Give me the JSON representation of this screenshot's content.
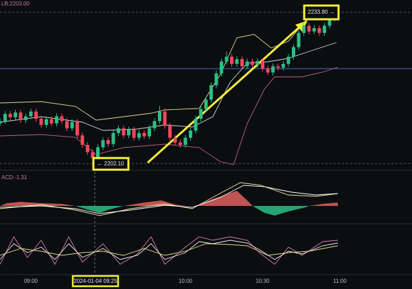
{
  "chart_data": {
    "type": "candlestick",
    "indicator_label": "LB:2203.00",
    "macd_label": "ACD:-1.31",
    "crosshair_label": "2024-01-04 09:25",
    "high_annotation": {
      "value": 2233.8,
      "label": "2233.80 →"
    },
    "low_annotation": {
      "value": 2202.1,
      "label": "← 2202.10"
    },
    "price_line": 2222.0,
    "price_line_color": "#4a6fb5",
    "up_color": "#2ebd85",
    "down_color": "#f6465d",
    "ylim": [
      2200.4,
      2236.4
    ],
    "xticks": [
      "09:00",
      "10:00",
      "10:30",
      "11:00"
    ],
    "x": [
      "08:48",
      "08:50",
      "08:52",
      "08:54",
      "08:56",
      "08:58",
      "09:00",
      "09:02",
      "09:04",
      "09:06",
      "09:08",
      "09:10",
      "09:12",
      "09:14",
      "09:16",
      "09:18",
      "09:20",
      "09:22",
      "09:24",
      "09:26",
      "09:28",
      "09:30",
      "09:32",
      "09:34",
      "09:36",
      "09:38",
      "09:40",
      "09:42",
      "09:44",
      "09:46",
      "09:48",
      "09:50",
      "09:52",
      "09:54",
      "09:56",
      "09:58",
      "10:00",
      "10:02",
      "10:04",
      "10:06",
      "10:08",
      "10:10",
      "10:12",
      "10:14",
      "10:16",
      "10:18",
      "10:20",
      "10:22",
      "10:24",
      "10:26",
      "10:28",
      "10:30",
      "10:32",
      "10:34",
      "10:36",
      "10:38",
      "10:40",
      "10:42",
      "10:44",
      "10:46",
      "10:48",
      "10:50",
      "10:52",
      "10:54",
      "10:56",
      "10:58"
    ],
    "open": [
      2210.5,
      2211.0,
      2212.5,
      2211.8,
      2212.8,
      2211.2,
      2212.0,
      2213.0,
      2211.5,
      2210.2,
      2211.4,
      2210.5,
      2212.0,
      2211.0,
      2209.5,
      2210.8,
      2208.0,
      2206.0,
      2204.5,
      2203.2,
      2205.5,
      2207.0,
      2206.2,
      2208.5,
      2209.5,
      2208.0,
      2209.2,
      2207.5,
      2208.5,
      2207.8,
      2209.5,
      2211.0,
      2213.0,
      2210.0,
      2207.5,
      2206.5,
      2206.0,
      2207.5,
      2209.0,
      2211.5,
      2213.5,
      2215.5,
      2218.5,
      2221.0,
      2223.5,
      2224.5,
      2223.0,
      2224.0,
      2222.5,
      2223.5,
      2222.8,
      2223.6,
      2222.0,
      2221.2,
      2222.5,
      2222.2,
      2223.0,
      2224.5,
      2226.5,
      2229.5,
      2231.0,
      2229.8,
      2230.5,
      2229.5,
      2231.0,
      2232.5
    ],
    "high": [
      2211.6,
      2213.1,
      2213.1,
      2213.4,
      2213.4,
      2212.6,
      2213.6,
      2213.6,
      2212.1,
      2212.0,
      2212.0,
      2212.6,
      2212.6,
      2211.6,
      2211.4,
      2211.4,
      2208.6,
      2206.6,
      2205.1,
      2206.1,
      2207.6,
      2207.6,
      2209.1,
      2210.1,
      2210.1,
      2209.8,
      2209.8,
      2209.1,
      2209.1,
      2210.1,
      2211.6,
      2214.2,
      2213.6,
      2210.6,
      2208.1,
      2207.1,
      2208.1,
      2209.6,
      2212.1,
      2214.1,
      2216.1,
      2219.1,
      2221.6,
      2224.1,
      2225.6,
      2225.1,
      2224.6,
      2224.6,
      2224.1,
      2224.1,
      2224.2,
      2224.2,
      2222.6,
      2223.1,
      2223.1,
      2223.6,
      2225.1,
      2227.1,
      2230.1,
      2231.6,
      2231.6,
      2231.1,
      2231.1,
      2231.6,
      2233.1,
      2233.8
    ],
    "low": [
      2209.9,
      2210.4,
      2211.2,
      2211.2,
      2210.6,
      2210.6,
      2211.4,
      2210.9,
      2209.6,
      2209.6,
      2209.9,
      2209.9,
      2210.4,
      2208.9,
      2208.9,
      2207.4,
      2205.4,
      2203.9,
      2202.1,
      2202.6,
      2204.9,
      2205.6,
      2205.6,
      2207.9,
      2207.4,
      2207.4,
      2206.9,
      2206.9,
      2207.2,
      2207.2,
      2208.9,
      2210.4,
      2209.4,
      2206.9,
      2205.9,
      2205.4,
      2205.4,
      2206.9,
      2208.4,
      2210.9,
      2212.9,
      2214.9,
      2217.9,
      2220.4,
      2222.9,
      2222.4,
      2222.4,
      2221.9,
      2221.9,
      2222.2,
      2222.2,
      2221.4,
      2220.6,
      2220.6,
      2221.6,
      2221.6,
      2222.4,
      2223.9,
      2225.9,
      2228.9,
      2229.2,
      2229.2,
      2228.9,
      2228.9,
      2230.4,
      2231.9
    ],
    "close": [
      2211.0,
      2212.5,
      2211.8,
      2212.8,
      2211.2,
      2212.0,
      2213.0,
      2211.5,
      2210.2,
      2211.4,
      2210.5,
      2212.0,
      2211.0,
      2209.5,
      2210.8,
      2208.0,
      2206.0,
      2204.5,
      2203.2,
      2205.5,
      2207.0,
      2206.2,
      2208.5,
      2209.5,
      2208.0,
      2209.2,
      2207.5,
      2208.5,
      2207.8,
      2209.5,
      2211.0,
      2213.0,
      2210.0,
      2207.5,
      2206.5,
      2206.0,
      2207.5,
      2209.0,
      2211.5,
      2213.5,
      2215.5,
      2218.5,
      2221.0,
      2223.5,
      2224.5,
      2223.0,
      2224.0,
      2222.5,
      2223.5,
      2222.8,
      2223.6,
      2222.0,
      2221.2,
      2222.5,
      2222.2,
      2223.0,
      2224.5,
      2226.5,
      2229.5,
      2231.0,
      2229.8,
      2230.5,
      2229.5,
      2231.0,
      2232.5,
      2233.5
    ]
  }
}
